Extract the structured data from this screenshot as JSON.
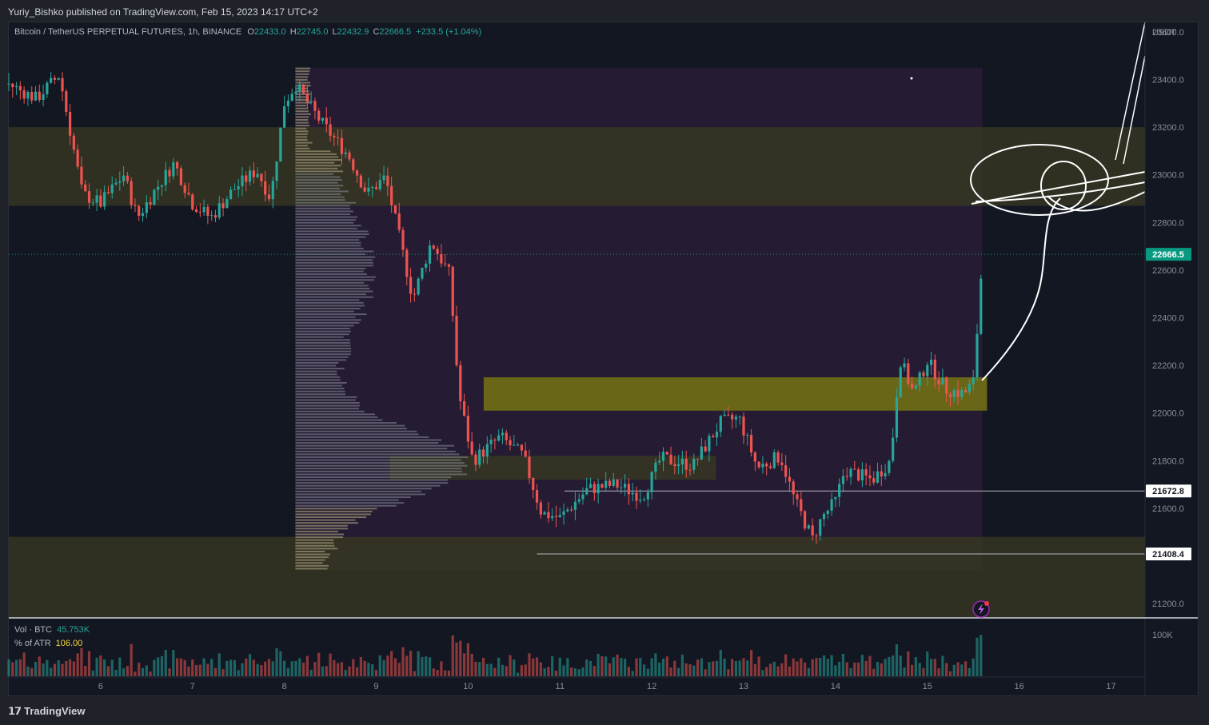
{
  "header": {
    "published_by": "Yuriy_Bishko published on TradingView.com, Feb 15, 2023 14:17 UTC+2"
  },
  "legend": {
    "symbol": "Bitcoin / TetherUS PERPETUAL FUTURES, 1h, BINANCE",
    "o_label": "O",
    "o_value": "22433.0",
    "h_label": "H",
    "h_value": "22745.0",
    "l_label": "L",
    "l_value": "22432.9",
    "c_label": "C",
    "c_value": "22666.5",
    "change": "+233.5 (+1.04%)"
  },
  "volume_legend": {
    "vol_label": "Vol · BTC",
    "vol_value": "45.753K",
    "atr_label": "% of ATR",
    "atr_value": "106.00"
  },
  "footer": {
    "logo_text": "TradingView"
  },
  "colors": {
    "up": "#26a69a",
    "down": "#ef5350",
    "current_price": "#089981",
    "zone_olive": "#3a3a22",
    "zone_yellow": "#6e6a16",
    "profile_range": "#2a1e38"
  },
  "chart_data": {
    "type": "candlestick",
    "interval": "1h",
    "unit_label": "USDT",
    "price_axis": {
      "ticks": [
        23600,
        23400,
        23200,
        23000,
        22800,
        22600,
        22400,
        22200,
        22000,
        21800,
        21600,
        21400,
        21200
      ],
      "range": [
        21140,
        23640
      ]
    },
    "x_axis": {
      "ticks": [
        "6",
        "7",
        "8",
        "9",
        "10",
        "11",
        "12",
        "13",
        "14",
        "15",
        "16",
        "17"
      ],
      "range_days": [
        5.0,
        17.37
      ]
    },
    "current_price": "22666.5",
    "price_labels": [
      "21672.8",
      "21408.4"
    ],
    "horizontal_lines": [
      {
        "price": 21672.8,
        "from_day": 11.05
      },
      {
        "price": 21408.4,
        "from_day": 10.75
      }
    ],
    "zones": [
      {
        "kind": "olive",
        "from_day": 5.0,
        "to_day": 17.37,
        "top": 23200,
        "bottom": 22870
      },
      {
        "kind": "olive",
        "from_day": 5.0,
        "to_day": 17.37,
        "top": 21480,
        "bottom": 21140
      },
      {
        "kind": "yellow",
        "from_day": 10.17,
        "to_day": 15.65,
        "top": 22150,
        "bottom": 22010
      },
      {
        "kind": "olive",
        "from_day": 9.15,
        "to_day": 12.7,
        "top": 21820,
        "bottom": 21720
      }
    ],
    "volume_profile_range": {
      "from_day": 8.12,
      "to_day": 15.6,
      "top": 23450,
      "bottom": 21340
    },
    "volume_axis": {
      "label": "100K"
    },
    "path_anchors": [
      {
        "day": 5.0,
        "price": 23380
      },
      {
        "day": 5.3,
        "price": 23320
      },
      {
        "day": 5.55,
        "price": 23420
      },
      {
        "day": 5.8,
        "price": 22920
      },
      {
        "day": 6.0,
        "price": 22880
      },
      {
        "day": 6.25,
        "price": 23000
      },
      {
        "day": 6.4,
        "price": 22820
      },
      {
        "day": 6.6,
        "price": 22940
      },
      {
        "day": 6.8,
        "price": 23050
      },
      {
        "day": 7.0,
        "price": 22880
      },
      {
        "day": 7.2,
        "price": 22820
      },
      {
        "day": 7.45,
        "price": 22940
      },
      {
        "day": 7.7,
        "price": 23020
      },
      {
        "day": 7.85,
        "price": 22900
      },
      {
        "day": 8.0,
        "price": 23300
      },
      {
        "day": 8.12,
        "price": 23380
      },
      {
        "day": 8.4,
        "price": 23220
      },
      {
        "day": 8.7,
        "price": 23080
      },
      {
        "day": 8.9,
        "price": 22920
      },
      {
        "day": 9.1,
        "price": 22990
      },
      {
        "day": 9.25,
        "price": 22740
      },
      {
        "day": 9.4,
        "price": 22480
      },
      {
        "day": 9.6,
        "price": 22720
      },
      {
        "day": 9.8,
        "price": 22580
      },
      {
        "day": 9.9,
        "price": 22080
      },
      {
        "day": 10.05,
        "price": 21800
      },
      {
        "day": 10.35,
        "price": 21900
      },
      {
        "day": 10.6,
        "price": 21820
      },
      {
        "day": 10.8,
        "price": 21580
      },
      {
        "day": 11.0,
        "price": 21560
      },
      {
        "day": 11.3,
        "price": 21680
      },
      {
        "day": 11.6,
        "price": 21700
      },
      {
        "day": 11.9,
        "price": 21650
      },
      {
        "day": 12.1,
        "price": 21810
      },
      {
        "day": 12.45,
        "price": 21780
      },
      {
        "day": 12.75,
        "price": 21960
      },
      {
        "day": 12.95,
        "price": 21980
      },
      {
        "day": 13.15,
        "price": 21770
      },
      {
        "day": 13.4,
        "price": 21820
      },
      {
        "day": 13.55,
        "price": 21640
      },
      {
        "day": 13.75,
        "price": 21470
      },
      {
        "day": 13.85,
        "price": 21560
      },
      {
        "day": 14.0,
        "price": 21630
      },
      {
        "day": 14.1,
        "price": 21760
      },
      {
        "day": 14.4,
        "price": 21720
      },
      {
        "day": 14.6,
        "price": 21800
      },
      {
        "day": 14.7,
        "price": 22230
      },
      {
        "day": 14.85,
        "price": 22080
      },
      {
        "day": 15.0,
        "price": 22220
      },
      {
        "day": 15.2,
        "price": 22100
      },
      {
        "day": 15.4,
        "price": 22080
      },
      {
        "day": 15.5,
        "price": 22130
      },
      {
        "day": 15.56,
        "price": 22433
      },
      {
        "day": 15.6,
        "price": 22666.5
      }
    ]
  }
}
